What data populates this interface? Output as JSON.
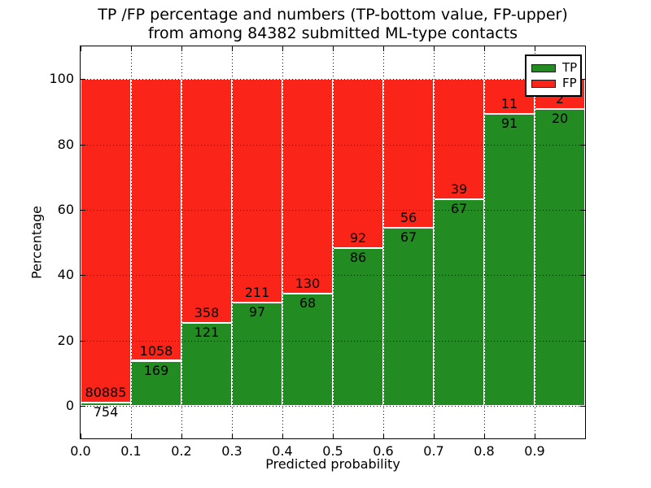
{
  "figure": {
    "title_line1": "TP /FP percentage and numbers (TP-bottom value, FP-upper)",
    "title_line2": "from among 84382 submitted ML-type contacts"
  },
  "chart_data": {
    "type": "bar",
    "subtype": "stacked-100-percent",
    "title": "TP /FP percentage and numbers (TP-bottom value, FP-upper) from among 84382 submitted ML-type contacts",
    "xlabel": "Predicted probability",
    "ylabel": "Percentage",
    "xlim": [
      0.0,
      1.0
    ],
    "ylim": [
      -10,
      110
    ],
    "grid": "dotted",
    "x_tick_labels": [
      "0.0",
      "0.1",
      "0.2",
      "0.3",
      "0.4",
      "0.5",
      "0.6",
      "0.7",
      "0.8",
      "0.9"
    ],
    "y_tick_values": [
      0,
      20,
      40,
      60,
      80,
      100
    ],
    "legend": {
      "position": "upper right",
      "entries": [
        {
          "label": "TP",
          "color": "#228b22"
        },
        {
          "label": "FP",
          "color": "#fb2418"
        }
      ]
    },
    "bins": [
      {
        "x0": 0.0,
        "x1": 0.1,
        "tp": 754,
        "fp": 80885
      },
      {
        "x0": 0.1,
        "x1": 0.2,
        "tp": 169,
        "fp": 1058
      },
      {
        "x0": 0.2,
        "x1": 0.3,
        "tp": 121,
        "fp": 358
      },
      {
        "x0": 0.3,
        "x1": 0.4,
        "tp": 97,
        "fp": 211
      },
      {
        "x0": 0.4,
        "x1": 0.5,
        "tp": 68,
        "fp": 130
      },
      {
        "x0": 0.5,
        "x1": 0.6,
        "tp": 86,
        "fp": 92
      },
      {
        "x0": 0.6,
        "x1": 0.7,
        "tp": 67,
        "fp": 56
      },
      {
        "x0": 0.7,
        "x1": 0.8,
        "tp": 67,
        "fp": 39
      },
      {
        "x0": 0.8,
        "x1": 0.9,
        "tp": 91,
        "fp": 11
      },
      {
        "x0": 0.9,
        "x1": 1.0,
        "tp": 20,
        "fp": 2
      }
    ],
    "colors": {
      "tp": "#228b22",
      "fp": "#fb2418",
      "bar_edge": "#ffffff",
      "grid": "#000000"
    }
  }
}
